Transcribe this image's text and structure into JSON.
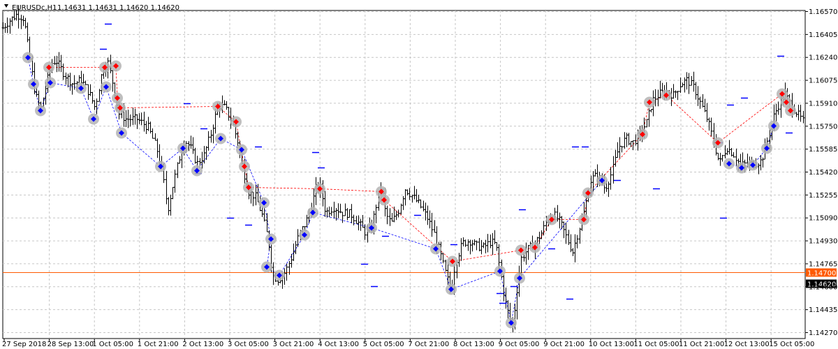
{
  "header": {
    "symbol": "EURUSDc,H1",
    "ohlc": "1.14631 1.14631 1.14620 1.14620",
    "indicator_icon": "triangle-down-icon"
  },
  "chart_data": {
    "type": "candlestick",
    "title": "EURUSDc,H1",
    "ylim": [
      1.1428,
      1.1666
    ],
    "y_ticks": [
      "1.16570",
      "1.16405",
      "1.16240",
      "1.16075",
      "1.15910",
      "1.15750",
      "1.15585",
      "1.15420",
      "1.15255",
      "1.15090",
      "1.14930",
      "1.14765",
      "1.14600",
      "1.14435",
      "1.14270"
    ],
    "x_ticks": [
      "27 Sep 2018",
      "28 Sep 13:00",
      "1 Oct 05:00",
      "1 Oct 21:00",
      "2 Oct 13:00",
      "3 Oct 05:00",
      "3 Oct 21:00",
      "4 Oct 13:00",
      "5 Oct 05:00",
      "7 Oct 21:00",
      "8 Oct 13:00",
      "9 Oct 05:00",
      "9 Oct 21:00",
      "10 Oct 13:00",
      "11 Oct 05:00",
      "11 Oct 21:00",
      "12 Oct 13:00",
      "15 Oct 05:00"
    ],
    "grid": true,
    "level_line": {
      "label": "1.14700",
      "value": 1.147,
      "color": "#ff5a00"
    },
    "price_line": {
      "label": "1.14620",
      "value": 1.1462,
      "color": "#000000"
    },
    "colors": {
      "bars": "#000000",
      "buy": "#0000ff",
      "sell": "#ff0000",
      "halo": "#b4b4b4",
      "grid": "#c6c6c6",
      "pending": "#ff8c00"
    },
    "price_path": [
      [
        0,
        1.1643
      ],
      [
        12,
        1.165
      ],
      [
        24,
        1.1655
      ],
      [
        34,
        1.1652
      ],
      [
        42,
        1.1624
      ],
      [
        50,
        1.1598
      ],
      [
        58,
        1.1587
      ],
      [
        66,
        1.1605
      ],
      [
        74,
        1.162
      ],
      [
        80,
        1.1622
      ],
      [
        92,
        1.1612
      ],
      [
        104,
        1.1605
      ],
      [
        116,
        1.1608
      ],
      [
        128,
        1.1598
      ],
      [
        136,
        1.1588
      ],
      [
        146,
        1.1614
      ],
      [
        154,
        1.1621
      ],
      [
        162,
        1.1604
      ],
      [
        170,
        1.1584
      ],
      [
        180,
        1.158
      ],
      [
        196,
        1.158
      ],
      [
        212,
        1.1574
      ],
      [
        224,
        1.1559
      ],
      [
        232,
        1.1543
      ],
      [
        240,
        1.1515
      ],
      [
        248,
        1.1534
      ],
      [
        256,
        1.1551
      ],
      [
        264,
        1.1565
      ],
      [
        272,
        1.156
      ],
      [
        282,
        1.1548
      ],
      [
        292,
        1.1554
      ],
      [
        302,
        1.157
      ],
      [
        312,
        1.159
      ],
      [
        322,
        1.1588
      ],
      [
        332,
        1.1578
      ],
      [
        340,
        1.1564
      ],
      [
        348,
        1.1543
      ],
      [
        356,
        1.1528
      ],
      [
        366,
        1.1524
      ],
      [
        376,
        1.151
      ],
      [
        384,
        1.1493
      ],
      [
        390,
        1.1468
      ],
      [
        398,
        1.1465
      ],
      [
        408,
        1.147
      ],
      [
        418,
        1.1482
      ],
      [
        428,
        1.1497
      ],
      [
        438,
        1.1506
      ],
      [
        446,
        1.1518
      ],
      [
        452,
        1.153
      ],
      [
        458,
        1.1532
      ],
      [
        466,
        1.1513
      ],
      [
        478,
        1.1517
      ],
      [
        490,
        1.1513
      ],
      [
        502,
        1.1512
      ],
      [
        514,
        1.1505
      ],
      [
        524,
        1.1498
      ],
      [
        532,
        1.1502
      ],
      [
        540,
        1.1522
      ],
      [
        546,
        1.1532
      ],
      [
        552,
        1.1512
      ],
      [
        560,
        1.1505
      ],
      [
        570,
        1.1514
      ],
      [
        580,
        1.153
      ],
      [
        590,
        1.1525
      ],
      [
        600,
        1.1519
      ],
      [
        612,
        1.1509
      ],
      [
        622,
        1.1497
      ],
      [
        630,
        1.1484
      ],
      [
        638,
        1.1469
      ],
      [
        646,
        1.1457
      ],
      [
        652,
        1.1478
      ],
      [
        662,
        1.1491
      ],
      [
        672,
        1.1493
      ],
      [
        682,
        1.1489
      ],
      [
        692,
        1.1488
      ],
      [
        702,
        1.1492
      ],
      [
        710,
        1.149
      ],
      [
        716,
        1.1472
      ],
      [
        722,
        1.1452
      ],
      [
        728,
        1.144
      ],
      [
        734,
        1.1432
      ],
      [
        740,
        1.1458
      ],
      [
        746,
        1.148
      ],
      [
        754,
        1.1486
      ],
      [
        764,
        1.149
      ],
      [
        774,
        1.1497
      ],
      [
        782,
        1.1506
      ],
      [
        792,
        1.1512
      ],
      [
        802,
        1.1506
      ],
      [
        812,
        1.1494
      ],
      [
        820,
        1.1485
      ],
      [
        828,
        1.15
      ],
      [
        836,
        1.1513
      ],
      [
        846,
        1.1537
      ],
      [
        856,
        1.154
      ],
      [
        866,
        1.153
      ],
      [
        876,
        1.1542
      ],
      [
        886,
        1.156
      ],
      [
        896,
        1.1566
      ],
      [
        906,
        1.1563
      ],
      [
        916,
        1.1569
      ],
      [
        926,
        1.1578
      ],
      [
        934,
        1.1593
      ],
      [
        944,
        1.1598
      ],
      [
        954,
        1.16
      ],
      [
        964,
        1.1597
      ],
      [
        974,
        1.1605
      ],
      [
        984,
        1.1608
      ],
      [
        994,
        1.1602
      ],
      [
        1004,
        1.159
      ],
      [
        1014,
        1.1578
      ],
      [
        1022,
        1.1563
      ],
      [
        1030,
        1.1548
      ],
      [
        1040,
        1.156
      ],
      [
        1050,
        1.1555
      ],
      [
        1060,
        1.1547
      ],
      [
        1070,
        1.1548
      ],
      [
        1080,
        1.1548
      ],
      [
        1090,
        1.155
      ],
      [
        1100,
        1.1567
      ],
      [
        1108,
        1.1582
      ],
      [
        1116,
        1.1592
      ],
      [
        1124,
        1.1598
      ],
      [
        1132,
        1.159
      ],
      [
        1140,
        1.1585
      ],
      [
        1150,
        1.1578
      ]
    ],
    "buy_signals": [
      [
        40,
        1.1624
      ],
      [
        48,
        1.1605
      ],
      [
        58,
        1.1586
      ],
      [
        72,
        1.1606
      ],
      [
        116,
        1.1602
      ],
      [
        134,
        1.158
      ],
      [
        152,
        1.1603
      ],
      [
        174,
        1.157
      ],
      [
        230,
        1.1546
      ],
      [
        262,
        1.1559
      ],
      [
        282,
        1.1543
      ],
      [
        316,
        1.1566
      ],
      [
        346,
        1.1558
      ],
      [
        378,
        1.152
      ],
      [
        388,
        1.1494
      ],
      [
        382,
        1.1474
      ],
      [
        400,
        1.1468
      ],
      [
        436,
        1.1497
      ],
      [
        448,
        1.1513
      ],
      [
        532,
        1.1502
      ],
      [
        624,
        1.1487
      ],
      [
        646,
        1.1458
      ],
      [
        716,
        1.1471
      ],
      [
        732,
        1.1434
      ],
      [
        744,
        1.1466
      ],
      [
        862,
        1.1536
      ],
      [
        1044,
        1.1548
      ],
      [
        1062,
        1.1545
      ],
      [
        1078,
        1.1547
      ],
      [
        1098,
        1.1559
      ],
      [
        1108,
        1.1575
      ]
    ],
    "sell_signals": [
      [
        70,
        1.1617
      ],
      [
        150,
        1.1617
      ],
      [
        166,
        1.1618
      ],
      [
        168,
        1.1595
      ],
      [
        172,
        1.1588
      ],
      [
        312,
        1.1589
      ],
      [
        338,
        1.1578
      ],
      [
        350,
        1.1546
      ],
      [
        356,
        1.1531
      ],
      [
        458,
        1.153
      ],
      [
        546,
        1.1528
      ],
      [
        550,
        1.1522
      ],
      [
        648,
        1.1478
      ],
      [
        746,
        1.1486
      ],
      [
        766,
        1.1488
      ],
      [
        790,
        1.1508
      ],
      [
        836,
        1.1508
      ],
      [
        842,
        1.1527
      ],
      [
        920,
        1.1569
      ],
      [
        930,
        1.1592
      ],
      [
        954,
        1.1597
      ],
      [
        1028,
        1.1563
      ],
      [
        1120,
        1.1598
      ],
      [
        1126,
        1.1592
      ],
      [
        1132,
        1.1586
      ]
    ],
    "orders": [
      [
        155,
        1.1648
      ],
      [
        148,
        1.163
      ],
      [
        268,
        1.1591
      ],
      [
        292,
        1.1573
      ],
      [
        284,
        1.1541
      ],
      [
        330,
        1.1509
      ],
      [
        370,
        1.156
      ],
      [
        356,
        1.1504
      ],
      [
        452,
        1.1556
      ],
      [
        460,
        1.1545
      ],
      [
        536,
        1.146
      ],
      [
        522,
        1.1476
      ],
      [
        552,
        1.1496
      ],
      [
        598,
        1.1511
      ],
      [
        650,
        1.149
      ],
      [
        716,
        1.1455
      ],
      [
        720,
        1.1448
      ],
      [
        736,
        1.146
      ],
      [
        748,
        1.1515
      ],
      [
        790,
        1.1487
      ],
      [
        816,
        1.1451
      ],
      [
        824,
        1.156
      ],
      [
        838,
        1.156
      ],
      [
        884,
        1.1536
      ],
      [
        940,
        1.153
      ],
      [
        1030,
        1.1563
      ],
      [
        1046,
        1.159
      ],
      [
        1066,
        1.1595
      ],
      [
        1118,
        1.1625
      ],
      [
        1130,
        1.157
      ],
      [
        1036,
        1.1509
      ]
    ]
  }
}
